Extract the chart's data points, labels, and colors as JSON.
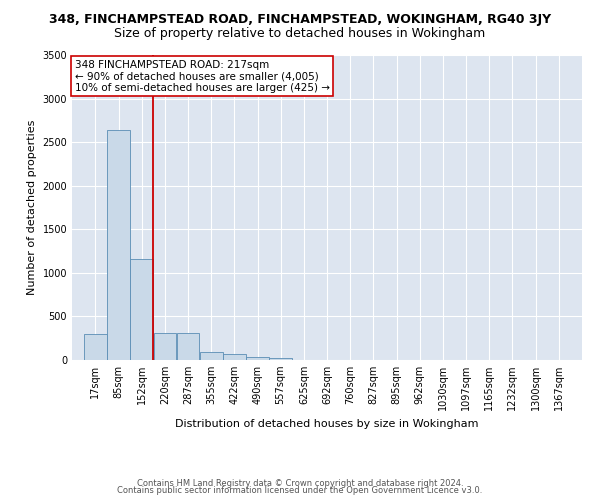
{
  "title_line1": "348, FINCHAMPSTEAD ROAD, FINCHAMPSTEAD, WOKINGHAM, RG40 3JY",
  "title_line2": "Size of property relative to detached houses in Wokingham",
  "xlabel": "Distribution of detached houses by size in Wokingham",
  "ylabel": "Number of detached properties",
  "footer_line1": "Contains HM Land Registry data © Crown copyright and database right 2024.",
  "footer_line2": "Contains public sector information licensed under the Open Government Licence v3.0.",
  "annotation_line1": "348 FINCHAMPSTEAD ROAD: 217sqm",
  "annotation_line2": "← 90% of detached houses are smaller (4,005)",
  "annotation_line3": "10% of semi-detached houses are larger (425) →",
  "property_line_x": 220,
  "bar_color": "#c9d9e8",
  "bar_edge_color": "#5a8db5",
  "property_line_color": "#cc0000",
  "annotation_box_edge_color": "#cc0000",
  "background_color": "#dde5f0",
  "ylim": [
    0,
    3500
  ],
  "categories": [
    "17sqm",
    "85sqm",
    "152sqm",
    "220sqm",
    "287sqm",
    "355sqm",
    "422sqm",
    "490sqm",
    "557sqm",
    "625sqm",
    "692sqm",
    "760sqm",
    "827sqm",
    "895sqm",
    "962sqm",
    "1030sqm",
    "1097sqm",
    "1165sqm",
    "1232sqm",
    "1300sqm",
    "1367sqm"
  ],
  "bar_values": [
    300,
    2640,
    1160,
    310,
    305,
    95,
    70,
    40,
    20,
    0,
    0,
    0,
    0,
    0,
    0,
    0,
    0,
    0,
    0,
    0,
    0
  ],
  "bin_edges": [
    17,
    85,
    152,
    220,
    287,
    355,
    422,
    490,
    557,
    625,
    692,
    760,
    827,
    895,
    962,
    1030,
    1097,
    1165,
    1232,
    1300,
    1367
  ],
  "yticks": [
    0,
    500,
    1000,
    1500,
    2000,
    2500,
    3000,
    3500
  ],
  "title1_fontsize": 9,
  "title2_fontsize": 9,
  "ylabel_fontsize": 8,
  "xlabel_fontsize": 8,
  "tick_fontsize": 7,
  "annotation_fontsize": 7.5,
  "footer_fontsize": 6
}
